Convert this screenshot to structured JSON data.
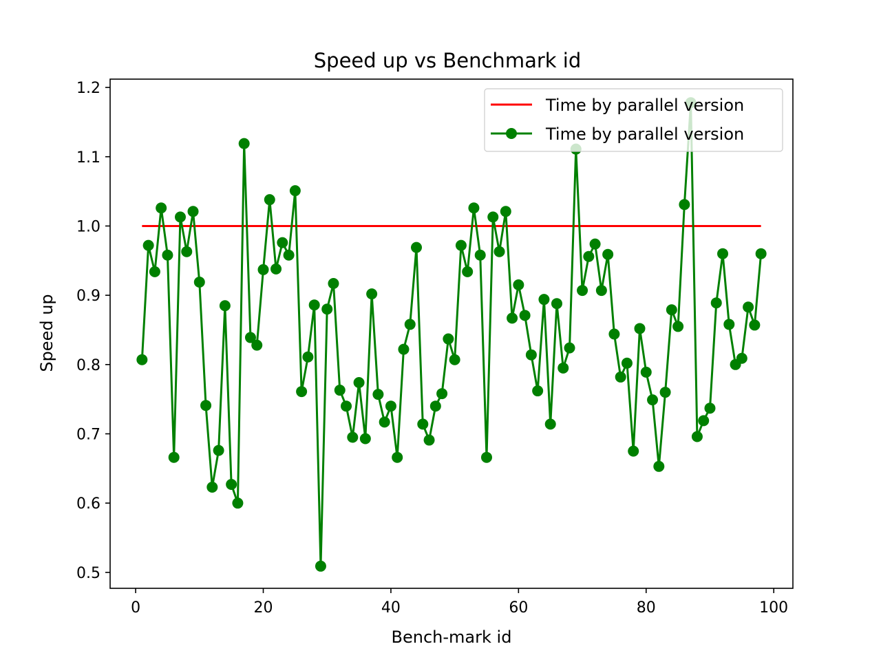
{
  "chart_data": {
    "type": "line",
    "title": "Speed up vs Benchmark id",
    "xlabel": "Bench-mark id",
    "ylabel": "Speed up",
    "xlim": [
      -4,
      103
    ],
    "ylim": [
      0.477,
      1.212
    ],
    "xticks": [
      0,
      20,
      40,
      60,
      80,
      100
    ],
    "yticks": [
      0.5,
      0.6,
      0.7,
      0.8,
      0.9,
      1.0,
      1.1,
      1.2
    ],
    "xtick_labels": [
      "0",
      "20",
      "40",
      "60",
      "80",
      "100"
    ],
    "ytick_labels": [
      "0.5",
      "0.6",
      "0.7",
      "0.8",
      "0.9",
      "1.0",
      "1.1",
      "1.2"
    ],
    "grid": false,
    "legend_position": "top-right",
    "colors": {
      "baseline": "#ff0000",
      "speedup": "#008000",
      "axes": "#000000"
    },
    "series": [
      {
        "name": "Time by parallel version",
        "style": "line",
        "x": [
          1,
          98
        ],
        "values": [
          1.0,
          1.0
        ]
      },
      {
        "name": "Time by parallel version",
        "style": "line-marker",
        "x": [
          1,
          2,
          3,
          4,
          5,
          6,
          7,
          8,
          9,
          10,
          11,
          12,
          13,
          14,
          15,
          16,
          17,
          18,
          19,
          20,
          21,
          22,
          23,
          24,
          25,
          26,
          27,
          28,
          29,
          30,
          31,
          32,
          33,
          34,
          35,
          36,
          37,
          38,
          39,
          40,
          41,
          42,
          43,
          44,
          45,
          46,
          47,
          48,
          49,
          50,
          51,
          52,
          53,
          54,
          55,
          56,
          57,
          58,
          59,
          60,
          61,
          62,
          63,
          64,
          65,
          66,
          67,
          68,
          69,
          70,
          71,
          72,
          73,
          74,
          75,
          76,
          77,
          78,
          79,
          80,
          81,
          82,
          83,
          84,
          85,
          86,
          87,
          88,
          89,
          90,
          91,
          92,
          93,
          94,
          95,
          96,
          97,
          98
        ],
        "values": [
          0.807,
          0.972,
          0.934,
          1.026,
          0.958,
          0.666,
          1.013,
          0.963,
          1.021,
          0.919,
          0.741,
          0.623,
          0.676,
          0.885,
          0.627,
          0.6,
          1.119,
          0.839,
          0.828,
          0.937,
          1.038,
          0.938,
          0.976,
          0.958,
          1.051,
          0.761,
          0.811,
          0.886,
          0.509,
          0.88,
          0.917,
          0.763,
          0.74,
          0.695,
          0.774,
          0.693,
          0.902,
          0.757,
          0.717,
          0.74,
          0.666,
          0.822,
          0.858,
          0.969,
          0.714,
          0.691,
          0.74,
          0.758,
          0.837,
          0.807,
          0.972,
          0.934,
          1.026,
          0.958,
          0.666,
          1.013,
          0.963,
          1.021,
          0.867,
          0.915,
          0.871,
          0.814,
          0.762,
          0.894,
          0.714,
          0.888,
          0.795,
          0.824,
          1.111,
          0.907,
          0.956,
          0.974,
          0.907,
          0.959,
          0.844,
          0.782,
          0.802,
          0.675,
          0.852,
          0.789,
          0.749,
          0.653,
          0.76,
          0.879,
          0.855,
          1.031,
          1.178,
          0.696,
          0.719,
          0.737,
          0.889,
          0.96,
          0.858,
          0.8,
          0.809,
          0.883,
          0.857,
          0.96
        ]
      }
    ]
  }
}
